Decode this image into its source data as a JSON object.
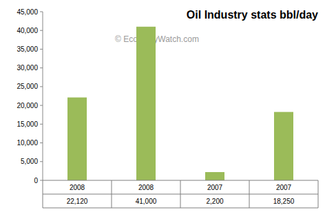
{
  "chart_data": {
    "type": "bar",
    "title": "Oil Industry stats bbl/day",
    "annotations": [
      "© EconomyWatch.com"
    ],
    "categories": [
      "2008",
      "2008",
      "2007",
      "2007"
    ],
    "values": [
      22120,
      41000,
      2200,
      18250
    ],
    "value_labels": [
      "22,120",
      "41,000",
      "2,200",
      "18,250"
    ],
    "data_labels": true,
    "color": "#9bbb59",
    "ylim": [
      0,
      45000
    ],
    "yticks": [
      0,
      {
        "value": 5000,
        "label": "5,000"
      },
      {
        "value": 10000,
        "label": "10,000"
      },
      {
        "value": 15000,
        "label": "15,000"
      },
      {
        "value": 20000,
        "label": "20,000"
      },
      {
        "value": 25000,
        "label": "25,000"
      },
      {
        "value": 30000,
        "label": "30,000"
      },
      {
        "value": 35000,
        "label": "35,000"
      },
      {
        "value": 40000,
        "label": "40,000"
      },
      {
        "value": 45000,
        "label": "45,000"
      }
    ],
    "grid": false
  }
}
